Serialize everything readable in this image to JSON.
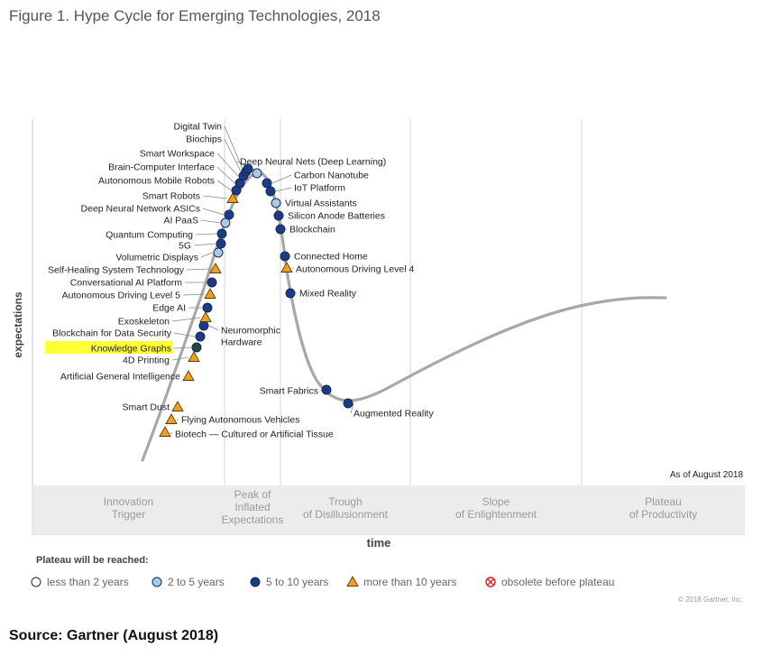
{
  "page": {
    "title": "Figure 1. Hype Cycle for Emerging Technologies, 2018",
    "source": "Source: Gartner (August 2018)",
    "copyright": "© 2018 Gartner, Inc.",
    "as_of": "As of August 2018"
  },
  "chart_data": {
    "type": "scatter",
    "title": "",
    "xlabel": "time",
    "ylabel": "expectations",
    "phases": [
      "Innovation Trigger",
      "Peak of Inflated Expectations",
      "Trough of Disillusionment",
      "Slope of Enlightenment",
      "Plateau of Productivity"
    ],
    "legend": {
      "title": "Plateau will be reached:",
      "items": [
        {
          "key": "lt2",
          "label": "less than 2 years",
          "symbol": "circle",
          "color": "#ffffff"
        },
        {
          "key": "2to5",
          "label": "2 to 5 years",
          "symbol": "circle",
          "color": "#a9c9ec"
        },
        {
          "key": "5to10",
          "label": "5 to 10 years",
          "symbol": "circle",
          "color": "#1a3a8c"
        },
        {
          "key": "gt10",
          "label": "more than 10 years",
          "symbol": "triangle",
          "color": "#f0a020"
        },
        {
          "key": "obsolete",
          "label": "obsolete before plateau",
          "symbol": "circle-x",
          "color": "#d62020"
        }
      ]
    },
    "technologies": [
      {
        "name": "Biotech — Cultured or Artificial Tissue",
        "category": "gt10",
        "side": "right"
      },
      {
        "name": "Flying Autonomous Vehicles",
        "category": "gt10",
        "side": "right"
      },
      {
        "name": "Smart Dust",
        "category": "gt10",
        "side": "left"
      },
      {
        "name": "Artificial General Intelligence",
        "category": "gt10",
        "side": "left"
      },
      {
        "name": "4D Printing",
        "category": "gt10",
        "side": "left"
      },
      {
        "name": "Knowledge Graphs",
        "category": "5to10",
        "side": "left",
        "highlight": true
      },
      {
        "name": "Blockchain for Data Security",
        "category": "5to10",
        "side": "left"
      },
      {
        "name": "Neuromorphic Hardware",
        "category": "5to10",
        "side": "right"
      },
      {
        "name": "Exoskeleton",
        "category": "gt10",
        "side": "left"
      },
      {
        "name": "Edge AI",
        "category": "5to10",
        "side": "left"
      },
      {
        "name": "Autonomous Driving Level 5",
        "category": "gt10",
        "side": "left"
      },
      {
        "name": "Conversational AI Platform",
        "category": "5to10",
        "side": "left"
      },
      {
        "name": "Self-Healing System Technology",
        "category": "gt10",
        "side": "left"
      },
      {
        "name": "Volumetric Displays",
        "category": "2to5",
        "side": "left"
      },
      {
        "name": "5G",
        "category": "5to10",
        "side": "left"
      },
      {
        "name": "Quantum Computing",
        "category": "5to10",
        "side": "left"
      },
      {
        "name": "AI PaaS",
        "category": "2to5",
        "side": "left"
      },
      {
        "name": "Deep Neural Network ASICs",
        "category": "5to10",
        "side": "left"
      },
      {
        "name": "Smart Robots",
        "category": "gt10",
        "side": "left"
      },
      {
        "name": "Autonomous Mobile Robots",
        "category": "5to10",
        "side": "left"
      },
      {
        "name": "Brain-Computer Interface",
        "category": "5to10",
        "side": "left"
      },
      {
        "name": "Smart Workspace",
        "category": "5to10",
        "side": "left"
      },
      {
        "name": "Biochips",
        "category": "5to10",
        "side": "left"
      },
      {
        "name": "Digital Twin",
        "category": "5to10",
        "side": "left"
      },
      {
        "name": "Deep Neural Nets (Deep Learning)",
        "category": "2to5",
        "side": "right"
      },
      {
        "name": "Carbon Nanotube",
        "category": "5to10",
        "side": "right"
      },
      {
        "name": "IoT Platform",
        "category": "5to10",
        "side": "right"
      },
      {
        "name": "Virtual Assistants",
        "category": "2to5",
        "side": "right"
      },
      {
        "name": "Silicon Anode Batteries",
        "category": "5to10",
        "side": "right"
      },
      {
        "name": "Blockchain",
        "category": "5to10",
        "side": "right"
      },
      {
        "name": "Connected Home",
        "category": "5to10",
        "side": "right"
      },
      {
        "name": "Autonomous Driving Level 4",
        "category": "gt10",
        "side": "right"
      },
      {
        "name": "Mixed Reality",
        "category": "5to10",
        "side": "right"
      },
      {
        "name": "Smart Fabrics",
        "category": "5to10",
        "side": "left"
      },
      {
        "name": "Augmented Reality",
        "category": "5to10",
        "side": "right"
      }
    ]
  }
}
